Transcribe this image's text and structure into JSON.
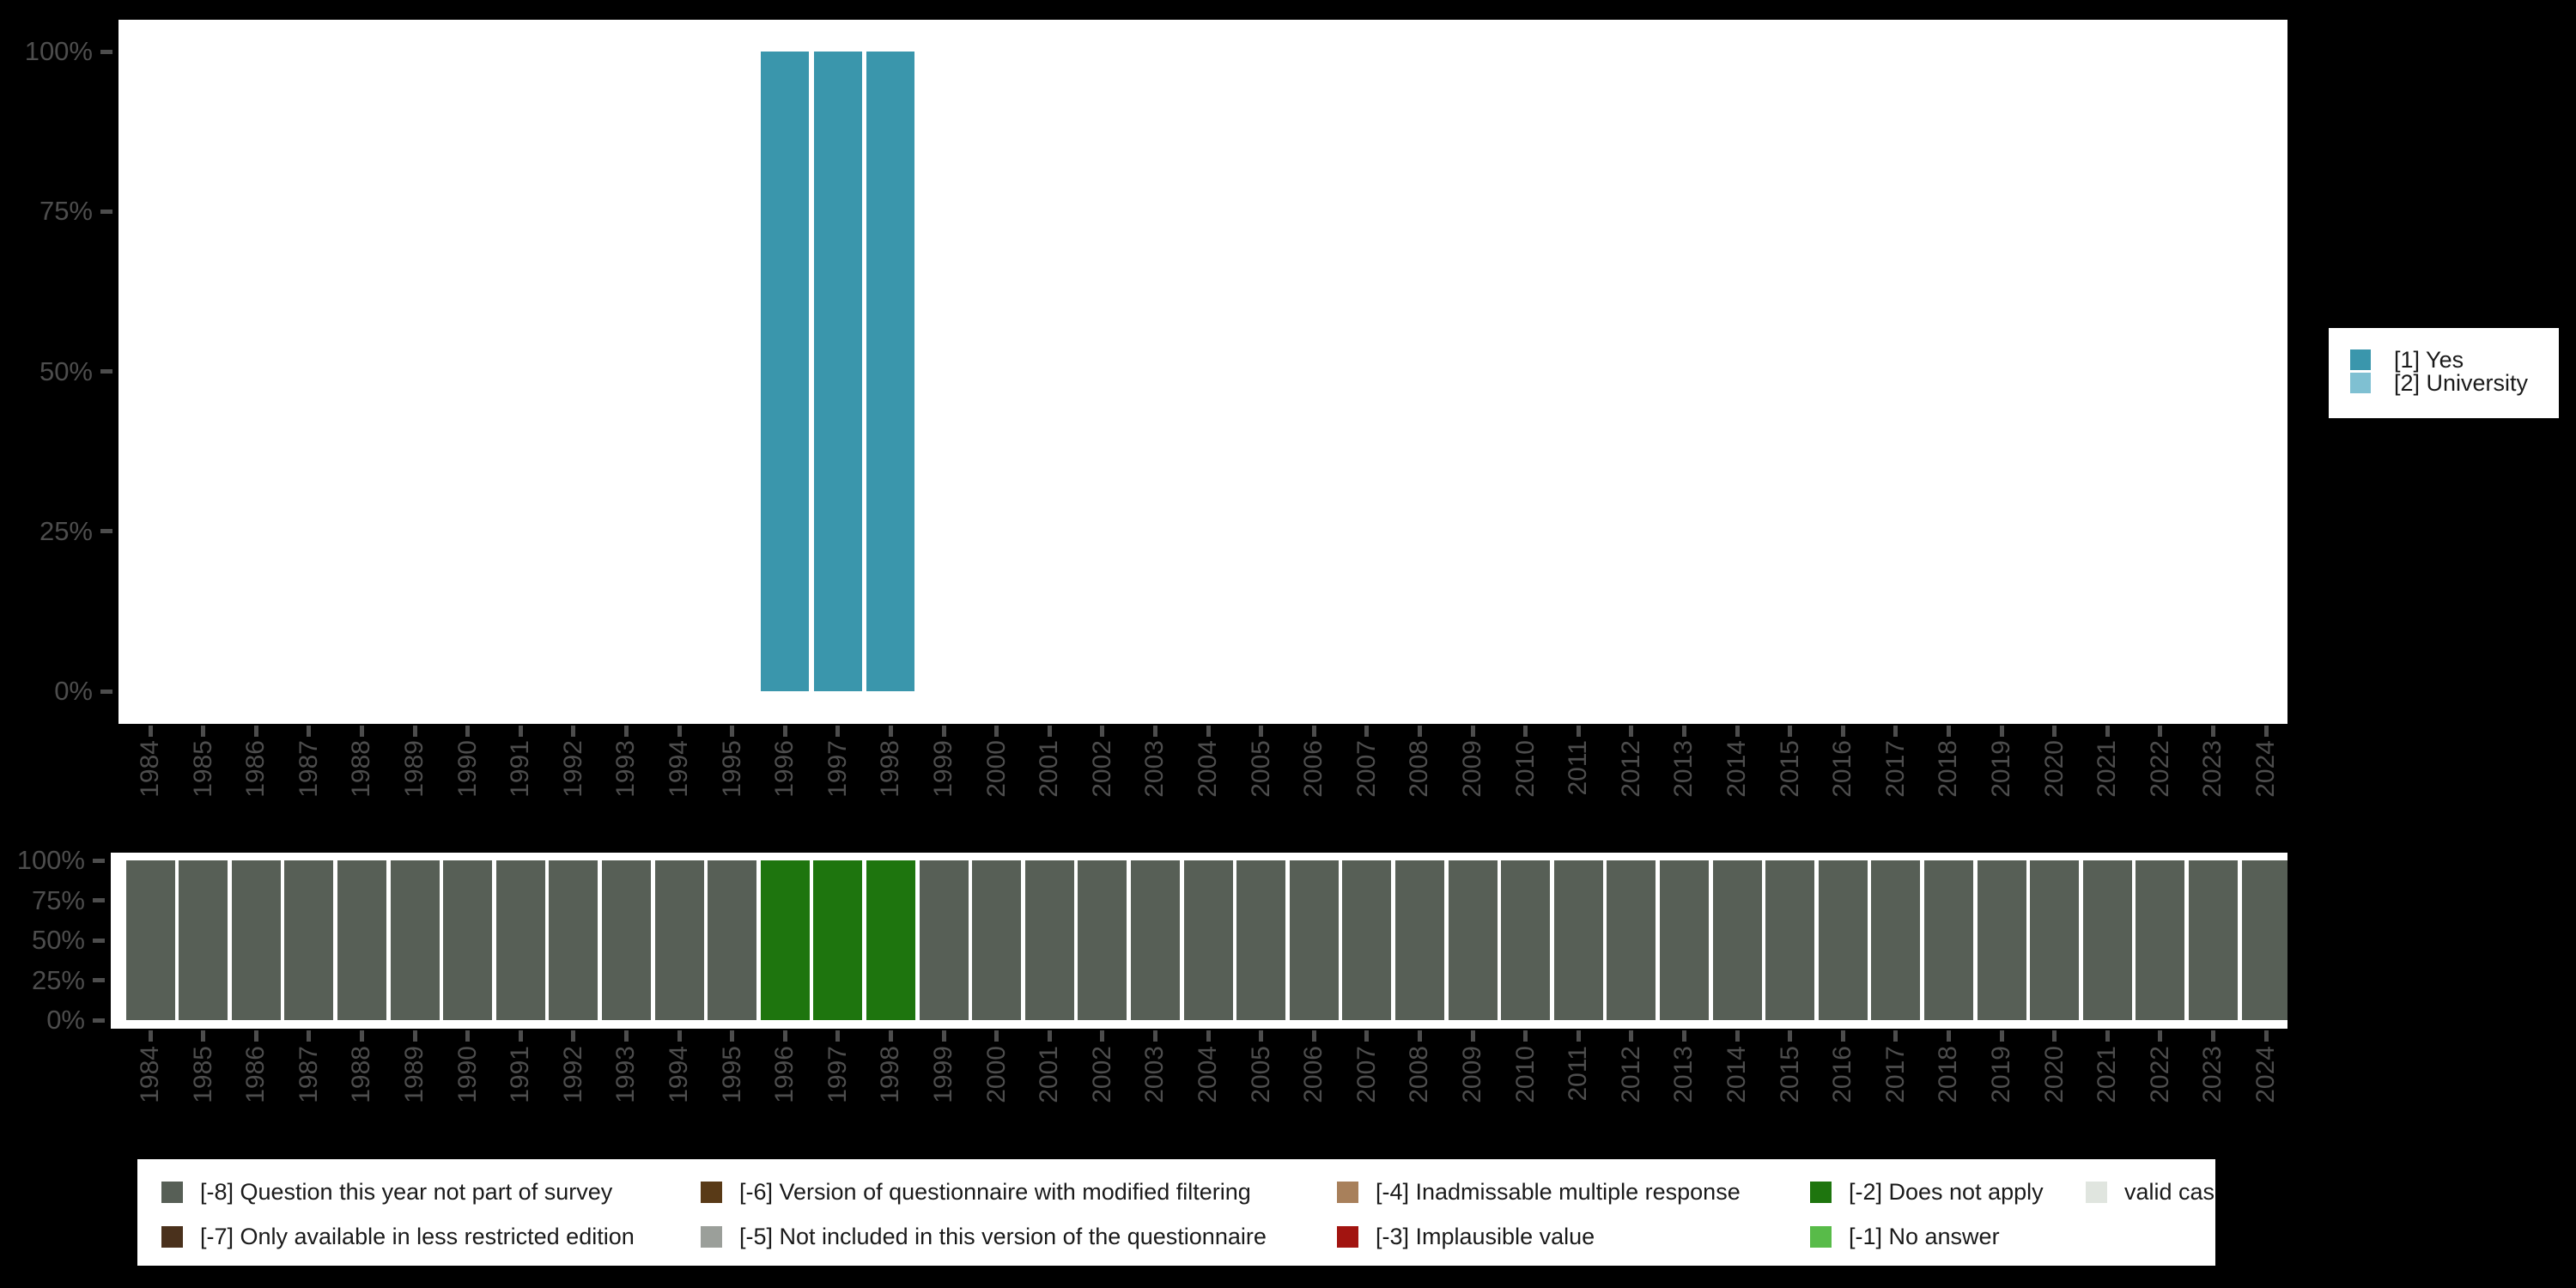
{
  "chart_data": [
    {
      "type": "bar",
      "stacked": true,
      "title": "",
      "xlabel": "",
      "ylabel": "",
      "ylim": [
        0,
        100
      ],
      "unit": "percent",
      "grid": false,
      "y_tick_labels": [
        "100%",
        "75%",
        "50%",
        "25%",
        "0%"
      ],
      "categories": [
        "1984",
        "1985",
        "1986",
        "1987",
        "1988",
        "1989",
        "1990",
        "1991",
        "1992",
        "1993",
        "1994",
        "1995",
        "1996",
        "1997",
        "1998",
        "1999",
        "2000",
        "2001",
        "2002",
        "2003",
        "2004",
        "2005",
        "2006",
        "2007",
        "2008",
        "2009",
        "2010",
        "2011",
        "2012",
        "2013",
        "2014",
        "2015",
        "2016",
        "2017",
        "2018",
        "2019",
        "2020",
        "2021",
        "2022",
        "2023",
        "2024"
      ],
      "series": [
        {
          "name": "[1] Yes",
          "color": "#3a96ac",
          "values": [
            0,
            0,
            0,
            0,
            0,
            0,
            0,
            0,
            0,
            0,
            0,
            0,
            100,
            100,
            100,
            0,
            0,
            0,
            0,
            0,
            0,
            0,
            0,
            0,
            0,
            0,
            0,
            0,
            0,
            0,
            0,
            0,
            0,
            0,
            0,
            0,
            0,
            0,
            0,
            0,
            0
          ]
        },
        {
          "name": "[2] University",
          "color": "#7fc0d2",
          "values": [
            0,
            0,
            0,
            0,
            0,
            0,
            0,
            0,
            0,
            0,
            0,
            0,
            0,
            0,
            0,
            0,
            0,
            0,
            0,
            0,
            0,
            0,
            0,
            0,
            0,
            0,
            0,
            0,
            0,
            0,
            0,
            0,
            0,
            0,
            0,
            0,
            0,
            0,
            0,
            0,
            0
          ]
        }
      ],
      "legend": {
        "position": "right",
        "items": [
          {
            "label": "[1] Yes",
            "color": "#3a96ac"
          },
          {
            "label": "[2] University",
            "color": "#7fc0d2"
          }
        ]
      }
    },
    {
      "type": "bar",
      "stacked": true,
      "title": "",
      "xlabel": "",
      "ylabel": "",
      "ylim": [
        0,
        100
      ],
      "unit": "percent",
      "grid": false,
      "y_tick_labels": [
        "100%",
        "75%",
        "50%",
        "25%",
        "0%"
      ],
      "categories": [
        "1984",
        "1985",
        "1986",
        "1987",
        "1988",
        "1989",
        "1990",
        "1991",
        "1992",
        "1993",
        "1994",
        "1995",
        "1996",
        "1997",
        "1998",
        "1999",
        "2000",
        "2001",
        "2002",
        "2003",
        "2004",
        "2005",
        "2006",
        "2007",
        "2008",
        "2009",
        "2010",
        "2011",
        "2012",
        "2013",
        "2014",
        "2015",
        "2016",
        "2017",
        "2018",
        "2019",
        "2020",
        "2021",
        "2022",
        "2023",
        "2024"
      ],
      "series": [
        {
          "name": "[-8] Question this year not part of survey",
          "color": "#575f56",
          "values": [
            100,
            100,
            100,
            100,
            100,
            100,
            100,
            100,
            100,
            100,
            100,
            100,
            0,
            0,
            0,
            100,
            100,
            100,
            100,
            100,
            100,
            100,
            100,
            100,
            100,
            100,
            100,
            100,
            100,
            100,
            100,
            100,
            100,
            100,
            100,
            100,
            100,
            100,
            100,
            100,
            100
          ]
        },
        {
          "name": "[-2] Does not apply",
          "color": "#1e750e",
          "values": [
            0,
            0,
            0,
            0,
            0,
            0,
            0,
            0,
            0,
            0,
            0,
            0,
            100,
            100,
            100,
            0,
            0,
            0,
            0,
            0,
            0,
            0,
            0,
            0,
            0,
            0,
            0,
            0,
            0,
            0,
            0,
            0,
            0,
            0,
            0,
            0,
            0,
            0,
            0,
            0,
            0
          ]
        }
      ],
      "legend": {
        "position": "bottom",
        "items": [
          {
            "label": "[-8] Question this year not part of survey",
            "color": "#575f56"
          },
          {
            "label": "[-7] Only available in less restricted edition",
            "color": "#4a311c"
          },
          {
            "label": "[-6] Version of questionnaire with modified filtering",
            "color": "#593a17"
          },
          {
            "label": "[-5] Not included in this version of the questionnaire",
            "color": "#9b9f9a"
          },
          {
            "label": "[-4] Inadmissable multiple response",
            "color": "#a8805b"
          },
          {
            "label": "[-3] Implausible value",
            "color": "#a21410"
          },
          {
            "label": "[-2] Does not apply",
            "color": "#1e750e"
          },
          {
            "label": "[-1] No answer",
            "color": "#58bb49"
          },
          {
            "label": "valid cases",
            "color": "#e0e5df"
          }
        ]
      }
    }
  ]
}
